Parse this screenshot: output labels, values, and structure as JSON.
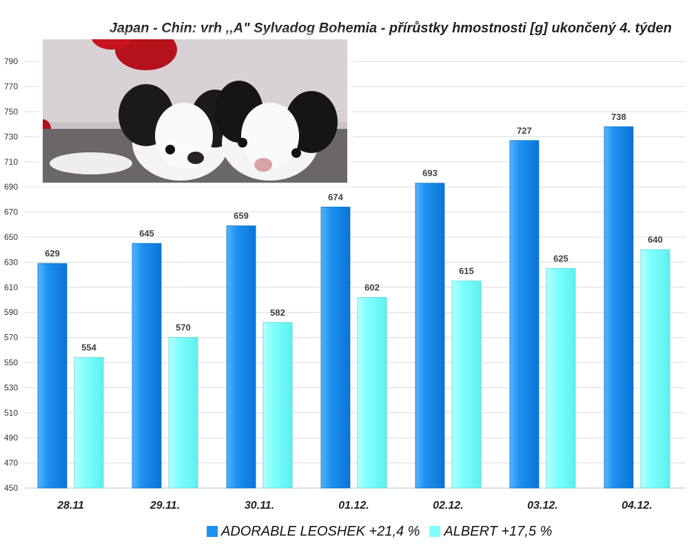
{
  "chart_data": {
    "type": "bar",
    "title": "Japan - Chin: vrh ,,A\" Sylvadog Bohemia - přírůstky hmostnosti [g] ukončený 4. týden",
    "categories": [
      "28.11",
      "29.11.",
      "30.11.",
      "01.12.",
      "02.12.",
      "03.12.",
      "04.12."
    ],
    "series": [
      {
        "name": "ADORABLE LEOSHEK  +21,4 %",
        "color": "#1E90F0",
        "values": [
          629,
          645,
          659,
          674,
          693,
          727,
          738
        ]
      },
      {
        "name": "ALBERT  +17,5 %",
        "color": "#7FFFFF",
        "values": [
          554,
          570,
          582,
          602,
          615,
          625,
          640
        ]
      }
    ],
    "yticks": [
      450,
      470,
      490,
      510,
      530,
      550,
      570,
      590,
      610,
      630,
      650,
      670,
      690,
      710,
      730,
      750,
      770,
      790
    ],
    "ylim": [
      450,
      800
    ],
    "grid": true,
    "legend_position": "bottom"
  }
}
